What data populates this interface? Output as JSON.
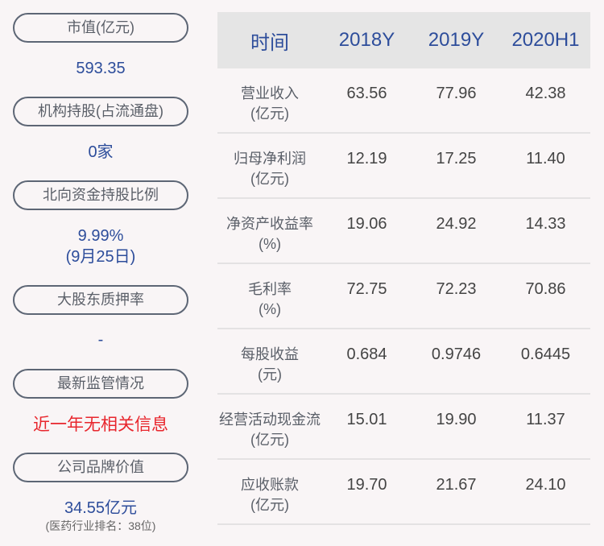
{
  "left": {
    "items": [
      {
        "label": "市值(亿元)",
        "value": "593.35"
      },
      {
        "label": "机构持股(占流通盘)",
        "value": "0家"
      },
      {
        "label": "北向资金持股比例",
        "value": "9.99%",
        "value2": "(9月25日)"
      },
      {
        "label": "大股东质押率",
        "value": "-"
      },
      {
        "label": "最新监管情况",
        "value": "近一年无相关信息"
      },
      {
        "label": "公司品牌价值",
        "value": "34.55亿元",
        "note": "(医药行业排名：38位)"
      }
    ]
  },
  "colors": {
    "accent": "#2d4d9b",
    "alert": "#e8262d",
    "header_bg": "#e5e5e5"
  },
  "table": {
    "headers": [
      "时间",
      "2018Y",
      "2019Y",
      "2020H1"
    ],
    "rows": [
      {
        "label": "营业收入",
        "unit": "(亿元)",
        "values": [
          "63.56",
          "77.96",
          "42.38"
        ]
      },
      {
        "label": "归母净利润",
        "unit": "(亿元)",
        "values": [
          "12.19",
          "17.25",
          "11.40"
        ]
      },
      {
        "label": "净资产收益率",
        "unit": "(%)",
        "values": [
          "19.06",
          "24.92",
          "14.33"
        ]
      },
      {
        "label": "毛利率",
        "unit": "(%)",
        "values": [
          "72.75",
          "72.23",
          "70.86"
        ]
      },
      {
        "label": "每股收益",
        "unit": "(元)",
        "values": [
          "0.684",
          "0.9746",
          "0.6445"
        ]
      },
      {
        "label": "经营活动现金流",
        "unit": "(亿元)",
        "values": [
          "15.01",
          "19.90",
          "11.37"
        ]
      },
      {
        "label": "应收账款",
        "unit": "(亿元)",
        "values": [
          "19.70",
          "21.67",
          "24.10"
        ]
      }
    ]
  }
}
